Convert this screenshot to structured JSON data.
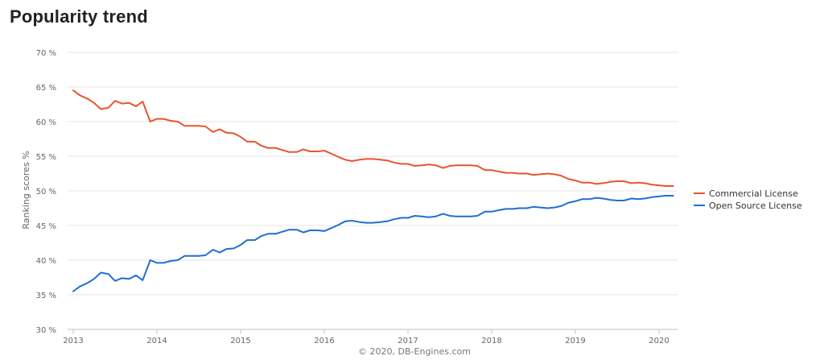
{
  "page": {
    "title": "Popularity trend"
  },
  "chart_data": {
    "type": "line",
    "title": "Popularity trend",
    "xlabel": "",
    "ylabel": "Ranking scores %",
    "ylim": [
      30,
      70
    ],
    "xlim": [
      2013,
      2020.25
    ],
    "y_ticks": [
      "30 %",
      "35 %",
      "40 %",
      "45 %",
      "50 %",
      "55 %",
      "60 %",
      "65 %",
      "70 %"
    ],
    "y_tick_values": [
      30,
      35,
      40,
      45,
      50,
      55,
      60,
      65,
      70
    ],
    "x_ticks": [
      "2013",
      "2014",
      "2015",
      "2016",
      "2017",
      "2018",
      "2019",
      "2020"
    ],
    "x_tick_values": [
      2013,
      2014,
      2015,
      2016,
      2017,
      2018,
      2019,
      2020
    ],
    "grid": "horizontal",
    "legend": "right",
    "credits": "© 2020, DB-Engines.com",
    "series": [
      {
        "name": "Commercial License",
        "color": "#e8542f",
        "points": [
          [
            2013.0,
            64.5
          ],
          [
            2013.08,
            63.8
          ],
          [
            2013.17,
            63.3
          ],
          [
            2013.25,
            62.7
          ],
          [
            2013.33,
            61.8
          ],
          [
            2013.42,
            62.0
          ],
          [
            2013.5,
            63.0
          ],
          [
            2013.58,
            62.6
          ],
          [
            2013.67,
            62.7
          ],
          [
            2013.75,
            62.2
          ],
          [
            2013.83,
            62.9
          ],
          [
            2013.92,
            60.0
          ],
          [
            2014.0,
            60.4
          ],
          [
            2014.08,
            60.4
          ],
          [
            2014.17,
            60.1
          ],
          [
            2014.25,
            60.0
          ],
          [
            2014.33,
            59.4
          ],
          [
            2014.42,
            59.4
          ],
          [
            2014.5,
            59.4
          ],
          [
            2014.58,
            59.3
          ],
          [
            2014.67,
            58.5
          ],
          [
            2014.75,
            58.9
          ],
          [
            2014.83,
            58.4
          ],
          [
            2014.92,
            58.3
          ],
          [
            2015.0,
            57.8
          ],
          [
            2015.08,
            57.1
          ],
          [
            2015.17,
            57.1
          ],
          [
            2015.25,
            56.5
          ],
          [
            2015.33,
            56.2
          ],
          [
            2015.42,
            56.2
          ],
          [
            2015.5,
            55.9
          ],
          [
            2015.58,
            55.6
          ],
          [
            2015.67,
            55.6
          ],
          [
            2015.75,
            56.0
          ],
          [
            2015.83,
            55.7
          ],
          [
            2015.92,
            55.7
          ],
          [
            2016.0,
            55.8
          ],
          [
            2016.08,
            55.4
          ],
          [
            2016.17,
            54.9
          ],
          [
            2016.25,
            54.5
          ],
          [
            2016.33,
            54.3
          ],
          [
            2016.42,
            54.5
          ],
          [
            2016.5,
            54.6
          ],
          [
            2016.58,
            54.6
          ],
          [
            2016.67,
            54.5
          ],
          [
            2016.75,
            54.4
          ],
          [
            2016.83,
            54.1
          ],
          [
            2016.92,
            53.9
          ],
          [
            2017.0,
            53.9
          ],
          [
            2017.08,
            53.6
          ],
          [
            2017.17,
            53.7
          ],
          [
            2017.25,
            53.8
          ],
          [
            2017.33,
            53.7
          ],
          [
            2017.42,
            53.3
          ],
          [
            2017.5,
            53.6
          ],
          [
            2017.58,
            53.7
          ],
          [
            2017.67,
            53.7
          ],
          [
            2017.75,
            53.7
          ],
          [
            2017.83,
            53.6
          ],
          [
            2017.92,
            53.0
          ],
          [
            2018.0,
            53.0
          ],
          [
            2018.08,
            52.8
          ],
          [
            2018.17,
            52.6
          ],
          [
            2018.25,
            52.6
          ],
          [
            2018.33,
            52.5
          ],
          [
            2018.42,
            52.5
          ],
          [
            2018.5,
            52.3
          ],
          [
            2018.58,
            52.4
          ],
          [
            2018.67,
            52.5
          ],
          [
            2018.75,
            52.4
          ],
          [
            2018.83,
            52.2
          ],
          [
            2018.92,
            51.7
          ],
          [
            2019.0,
            51.5
          ],
          [
            2019.08,
            51.2
          ],
          [
            2019.17,
            51.2
          ],
          [
            2019.25,
            51.0
          ],
          [
            2019.33,
            51.1
          ],
          [
            2019.42,
            51.3
          ],
          [
            2019.5,
            51.4
          ],
          [
            2019.58,
            51.4
          ],
          [
            2019.67,
            51.1
          ],
          [
            2019.75,
            51.2
          ],
          [
            2019.83,
            51.1
          ],
          [
            2019.92,
            50.9
          ],
          [
            2020.0,
            50.8
          ],
          [
            2020.08,
            50.7
          ],
          [
            2020.17,
            50.7
          ]
        ]
      },
      {
        "name": "Open Source License",
        "color": "#1f6fd1",
        "points": [
          [
            2013.0,
            35.5
          ],
          [
            2013.08,
            36.2
          ],
          [
            2013.17,
            36.7
          ],
          [
            2013.25,
            37.3
          ],
          [
            2013.33,
            38.2
          ],
          [
            2013.42,
            38.0
          ],
          [
            2013.5,
            37.0
          ],
          [
            2013.58,
            37.4
          ],
          [
            2013.67,
            37.3
          ],
          [
            2013.75,
            37.8
          ],
          [
            2013.83,
            37.1
          ],
          [
            2013.92,
            40.0
          ],
          [
            2014.0,
            39.6
          ],
          [
            2014.08,
            39.6
          ],
          [
            2014.17,
            39.9
          ],
          [
            2014.25,
            40.0
          ],
          [
            2014.33,
            40.6
          ],
          [
            2014.42,
            40.6
          ],
          [
            2014.5,
            40.6
          ],
          [
            2014.58,
            40.7
          ],
          [
            2014.67,
            41.5
          ],
          [
            2014.75,
            41.1
          ],
          [
            2014.83,
            41.6
          ],
          [
            2014.92,
            41.7
          ],
          [
            2015.0,
            42.2
          ],
          [
            2015.08,
            42.9
          ],
          [
            2015.17,
            42.9
          ],
          [
            2015.25,
            43.5
          ],
          [
            2015.33,
            43.8
          ],
          [
            2015.42,
            43.8
          ],
          [
            2015.5,
            44.1
          ],
          [
            2015.58,
            44.4
          ],
          [
            2015.67,
            44.4
          ],
          [
            2015.75,
            44.0
          ],
          [
            2015.83,
            44.3
          ],
          [
            2015.92,
            44.3
          ],
          [
            2016.0,
            44.2
          ],
          [
            2016.08,
            44.6
          ],
          [
            2016.17,
            45.1
          ],
          [
            2016.25,
            45.6
          ],
          [
            2016.33,
            45.7
          ],
          [
            2016.42,
            45.5
          ],
          [
            2016.5,
            45.4
          ],
          [
            2016.58,
            45.4
          ],
          [
            2016.67,
            45.5
          ],
          [
            2016.75,
            45.6
          ],
          [
            2016.83,
            45.9
          ],
          [
            2016.92,
            46.1
          ],
          [
            2017.0,
            46.1
          ],
          [
            2017.08,
            46.4
          ],
          [
            2017.17,
            46.3
          ],
          [
            2017.25,
            46.2
          ],
          [
            2017.33,
            46.3
          ],
          [
            2017.42,
            46.7
          ],
          [
            2017.5,
            46.4
          ],
          [
            2017.58,
            46.3
          ],
          [
            2017.67,
            46.3
          ],
          [
            2017.75,
            46.3
          ],
          [
            2017.83,
            46.4
          ],
          [
            2017.92,
            47.0
          ],
          [
            2018.0,
            47.0
          ],
          [
            2018.08,
            47.2
          ],
          [
            2018.17,
            47.4
          ],
          [
            2018.25,
            47.4
          ],
          [
            2018.33,
            47.5
          ],
          [
            2018.42,
            47.5
          ],
          [
            2018.5,
            47.7
          ],
          [
            2018.58,
            47.6
          ],
          [
            2018.67,
            47.5
          ],
          [
            2018.75,
            47.6
          ],
          [
            2018.83,
            47.8
          ],
          [
            2018.92,
            48.3
          ],
          [
            2019.0,
            48.5
          ],
          [
            2019.08,
            48.8
          ],
          [
            2019.17,
            48.8
          ],
          [
            2019.25,
            49.0
          ],
          [
            2019.33,
            48.9
          ],
          [
            2019.42,
            48.7
          ],
          [
            2019.5,
            48.6
          ],
          [
            2019.58,
            48.6
          ],
          [
            2019.67,
            48.9
          ],
          [
            2019.75,
            48.8
          ],
          [
            2019.83,
            48.9
          ],
          [
            2019.92,
            49.1
          ],
          [
            2020.0,
            49.2
          ],
          [
            2020.08,
            49.3
          ],
          [
            2020.17,
            49.3
          ]
        ]
      }
    ]
  }
}
